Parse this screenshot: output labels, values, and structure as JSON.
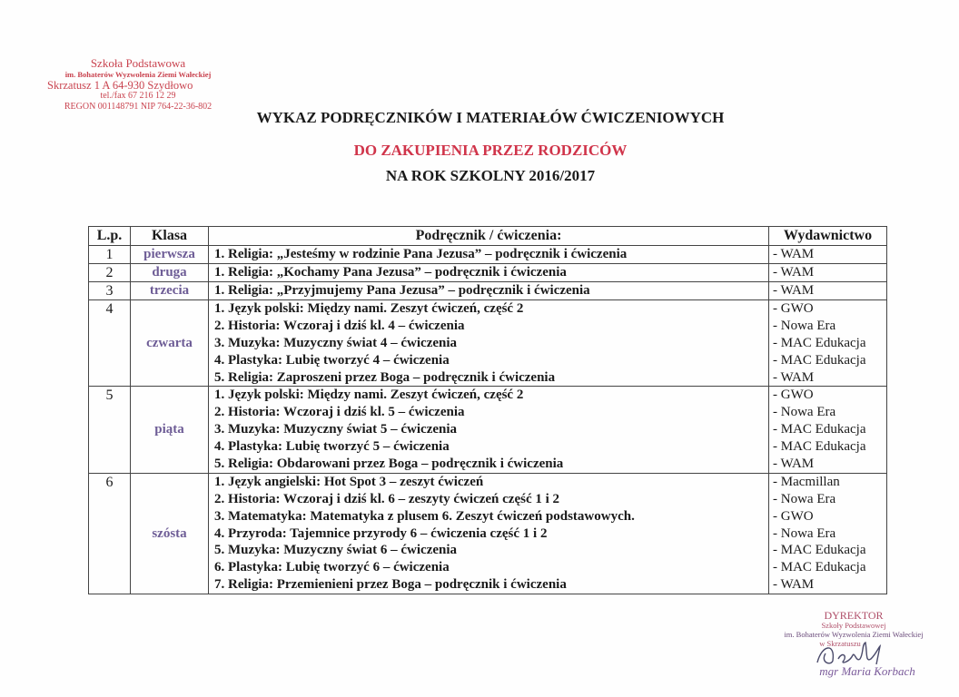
{
  "stamp": {
    "line1": "Szkoła Podstawowa",
    "line2": "im. Bohaterów Wyzwolenia Ziemi Wałeckiej",
    "line3": "Skrzatusz 1 A    64-930 Szydłowo",
    "line4": "tel./fax 67 216 12 29",
    "line5": "REGON 001148791   NIP 764-22-36-802"
  },
  "header": {
    "title": "WYKAZ PODRĘCZNIKÓW I MATERIAŁÓW ĆWICZENIOWYCH",
    "subtitle": "DO ZAKUPIENIA PRZEZ RODZICÓW",
    "year": "NA ROK SZKOLNY 2016/2017",
    "accent": "#d0344a"
  },
  "table": {
    "headers": [
      "L.p.",
      "Klasa",
      "Podręcznik / ćwiczenia:",
      "Wydawnictwo"
    ],
    "rows": [
      {
        "lp": "1",
        "klasa": "pierwsza",
        "items": [
          "1. Religia: „Jesteśmy w rodzinie Pana Jezusa” – podręcznik i ćwiczenia"
        ],
        "pubs": [
          "- WAM"
        ]
      },
      {
        "lp": "2",
        "klasa": "druga",
        "items": [
          "1. Religia: „Kochamy Pana Jezusa” – podręcznik i ćwiczenia"
        ],
        "pubs": [
          "- WAM"
        ]
      },
      {
        "lp": "3",
        "klasa": "trzecia",
        "items": [
          "1. Religia: „Przyjmujemy Pana Jezusa” – podręcznik i ćwiczenia"
        ],
        "pubs": [
          "- WAM"
        ]
      },
      {
        "lp": "4",
        "klasa": "czwarta",
        "items": [
          "1. Język polski: Między nami. Zeszyt ćwiczeń, część 2",
          "2. Historia: Wczoraj i dziś kl. 4 – ćwiczenia",
          "3. Muzyka: Muzyczny świat 4 – ćwiczenia",
          "4. Plastyka: Lubię tworzyć 4 – ćwiczenia",
          "5. Religia: Zaproszeni przez Boga – podręcznik i ćwiczenia"
        ],
        "pubs": [
          "- GWO",
          "- Nowa Era",
          "- MAC Edukacja",
          "- MAC Edukacja",
          "- WAM"
        ]
      },
      {
        "lp": "5",
        "klasa": "piąta",
        "items": [
          "1. Język polski: Między nami. Zeszyt ćwiczeń, część 2",
          "2. Historia: Wczoraj i dziś kl. 5 – ćwiczenia",
          "3. Muzyka: Muzyczny świat 5 – ćwiczenia",
          "4. Plastyka: Lubię tworzyć 5 – ćwiczenia",
          "5. Religia: Obdarowani przez Boga – podręcznik i ćwiczenia"
        ],
        "pubs": [
          "- GWO",
          "- Nowa Era",
          "- MAC Edukacja",
          "- MAC Edukacja",
          "- WAM"
        ]
      },
      {
        "lp": "6",
        "klasa": "szósta",
        "items": [
          "1. Język angielski: Hot Spot 3 – zeszyt ćwiczeń",
          "2. Historia: Wczoraj i dziś kl. 6 – zeszyty ćwiczeń część 1 i 2",
          "3. Matematyka: Matematyka z plusem 6. Zeszyt ćwiczeń podstawowych.",
          "4. Przyroda: Tajemnice przyrody 6 – ćwiczenia część 1 i 2",
          "5. Muzyka: Muzyczny świat 6 – ćwiczenia",
          "6. Plastyka: Lubię tworzyć 6 – ćwiczenia",
          "7. Religia: Przemienieni przez Boga – podręcznik i ćwiczenia"
        ],
        "pubs": [
          "- Macmillan",
          "- Nowa Era",
          "- GWO",
          "- Nowa Era",
          "- MAC Edukacja",
          "- MAC Edukacja",
          "- WAM"
        ]
      }
    ]
  },
  "director": {
    "title": "DYREKTOR",
    "line1": "Szkoły Podstawowej",
    "line2": "im. Bohaterów Wyzwolenia Ziemi Wałeckiej",
    "line3": "w Skrzatuszu",
    "name": "mgr Maria Korbach"
  }
}
